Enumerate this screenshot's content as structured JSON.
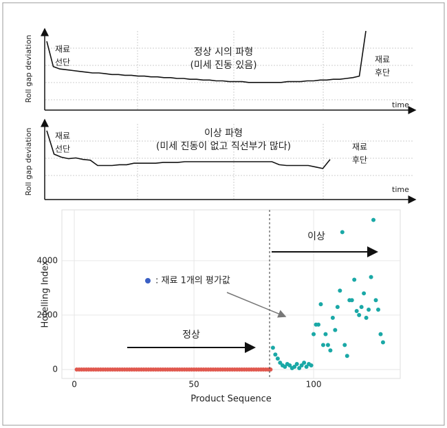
{
  "chart_data": [
    {
      "type": "line",
      "y_label": "Roll gap deviation",
      "x_label": "time",
      "color": "#111111",
      "ylim": [
        0,
        100
      ],
      "annotations": [
        {
          "lines": [
            "재료",
            "선단"
          ]
        },
        {
          "lines": [
            "정상 시의 파형",
            "(미세 진동 있음)"
          ]
        },
        {
          "lines": [
            "재료",
            "후단"
          ]
        }
      ],
      "values": [
        87,
        55,
        52,
        51,
        50,
        49,
        48,
        47,
        47,
        46,
        45,
        45,
        44,
        44,
        43,
        43,
        42,
        42,
        41,
        41,
        40,
        40,
        39,
        39,
        38,
        38,
        37,
        37,
        36,
        36,
        36,
        35,
        35,
        35,
        35,
        35,
        35,
        36,
        36,
        36,
        37,
        37,
        38,
        38,
        39,
        39,
        40,
        41,
        43,
        100
      ]
    },
    {
      "type": "line",
      "y_label": "Roll gap deviation",
      "x_label": "time",
      "color": "#111111",
      "ylim": [
        0,
        100
      ],
      "annotations": [
        {
          "lines": [
            "재료",
            "선단"
          ]
        },
        {
          "lines": [
            "이상 파형",
            "(미세 진동이 없고 직선부가 많다)"
          ]
        },
        {
          "lines": [
            "재료",
            "후단"
          ]
        }
      ],
      "values": [
        91,
        60,
        56,
        54,
        55,
        53,
        52,
        45,
        45,
        45,
        46,
        46,
        48,
        48,
        48,
        48,
        49,
        49,
        49,
        50,
        50,
        50,
        50,
        50,
        50,
        50,
        50,
        50,
        50,
        50,
        50,
        50,
        46,
        45,
        45,
        45,
        45,
        43,
        41,
        53
      ]
    },
    {
      "type": "scatter",
      "x_label": "Product Sequence",
      "y_label": "Hotelling Index",
      "xlim": [
        -5.2,
        136.2
      ],
      "ylim": [
        -330,
        5870
      ],
      "xticks": [
        0,
        50,
        100
      ],
      "yticks": [
        0,
        2000,
        4000
      ],
      "grid": true,
      "divider_x": 81.6,
      "normal_label": "정상",
      "abnormal_label": "이상",
      "legend_text": ": 재료 1개의 평가값",
      "legend_color": "#3a5fc4",
      "series": [
        {
          "color": "#e0584e",
          "x": [
            1,
            2,
            3,
            4,
            5,
            6,
            7,
            8,
            9,
            10,
            11,
            12,
            13,
            14,
            15,
            16,
            17,
            18,
            19,
            20,
            21,
            22,
            23,
            24,
            25,
            26,
            27,
            28,
            29,
            30,
            31,
            32,
            33,
            34,
            35,
            36,
            37,
            38,
            39,
            40,
            41,
            42,
            43,
            44,
            45,
            46,
            47,
            48,
            49,
            50,
            51,
            52,
            53,
            54,
            55,
            56,
            57,
            58,
            59,
            60,
            61,
            62,
            63,
            64,
            65,
            66,
            67,
            68,
            69,
            70,
            71,
            72,
            73,
            74,
            75,
            76,
            77,
            78,
            79,
            80,
            81,
            82
          ],
          "values": [
            0,
            0,
            0,
            0,
            0,
            0,
            0,
            0,
            0,
            0,
            0,
            0,
            0,
            0,
            0,
            0,
            0,
            0,
            0,
            0,
            0,
            0,
            0,
            0,
            0,
            0,
            0,
            0,
            0,
            0,
            0,
            0,
            0,
            0,
            0,
            0,
            0,
            0,
            0,
            0,
            0,
            0,
            0,
            0,
            0,
            0,
            0,
            0,
            0,
            0,
            0,
            0,
            0,
            0,
            0,
            0,
            0,
            0,
            0,
            0,
            0,
            0,
            0,
            0,
            0,
            0,
            0,
            0,
            0,
            0,
            0,
            0,
            0,
            0,
            0,
            0,
            0,
            0,
            0,
            0,
            0,
            0
          ]
        },
        {
          "color": "#1aa8a6",
          "x": [
            83,
            84,
            85,
            86,
            87,
            88,
            89,
            90,
            91,
            92,
            93,
            94,
            95,
            96,
            97,
            98,
            99,
            100,
            101,
            102,
            103,
            104,
            105,
            106,
            107,
            108,
            109,
            110,
            111,
            112,
            113,
            114,
            115,
            116,
            117,
            118,
            119,
            120,
            121,
            122,
            123,
            124,
            125,
            126,
            127,
            128,
            129
          ],
          "values": [
            800,
            550,
            400,
            250,
            150,
            100,
            200,
            150,
            50,
            100,
            200,
            50,
            150,
            250,
            100,
            200,
            150,
            1300,
            1650,
            1650,
            2400,
            900,
            1300,
            900,
            700,
            1900,
            1450,
            2300,
            2900,
            5050,
            900,
            500,
            2550,
            2550,
            3300,
            2150,
            2000,
            2300,
            2800,
            1900,
            2200,
            3400,
            5500,
            2550,
            2200,
            1300,
            1000
          ]
        }
      ]
    }
  ]
}
